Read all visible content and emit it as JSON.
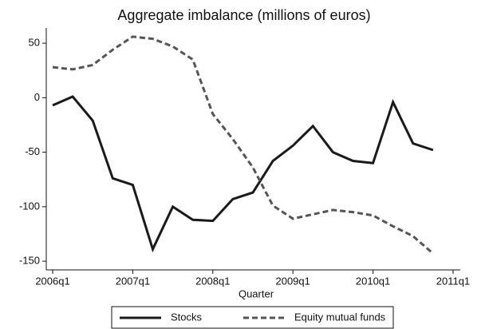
{
  "chart_data": {
    "type": "line",
    "title": "Aggregate imbalance (millions of euros)",
    "x_label": "Quarter",
    "x": [
      2006,
      2006.25,
      2006.5,
      2006.75,
      2007,
      2007.25,
      2007.5,
      2007.75,
      2008,
      2008.25,
      2008.5,
      2008.75,
      2009,
      2009.25,
      2009.5,
      2009.75,
      2010,
      2010.25,
      2010.5,
      2010.75
    ],
    "series": [
      {
        "name": "Stocks",
        "color": "#1a1a1a",
        "dash": "solid",
        "values": [
          -7,
          1,
          -21,
          -74,
          -80,
          -139,
          -100,
          -112,
          -113,
          -93,
          -87,
          -58,
          -44,
          -26,
          -50,
          -58,
          -60,
          -4,
          -42,
          -48
        ]
      },
      {
        "name": "Equity mutual funds",
        "color": "#555555",
        "dash": "dashed",
        "values": [
          28,
          26,
          30,
          44,
          56,
          54,
          47,
          35,
          -15,
          -38,
          -64,
          -99,
          -111,
          -107,
          -103,
          -105,
          -108,
          -118,
          -127,
          -143
        ]
      }
    ],
    "xlim": [
      2005.92,
      2011.09
    ],
    "ylim": [
      -158,
      64
    ],
    "xticks": [
      {
        "value": 2006,
        "label": "2006q1"
      },
      {
        "value": 2007,
        "label": "2007q1"
      },
      {
        "value": 2008,
        "label": "2008q1"
      },
      {
        "value": 2009,
        "label": "2009q1"
      },
      {
        "value": 2010,
        "label": "2010q1"
      },
      {
        "value": 2011,
        "label": "2011q1"
      }
    ],
    "yticks": [
      -150,
      -100,
      -50,
      0,
      50
    ],
    "legend": "bottom"
  }
}
